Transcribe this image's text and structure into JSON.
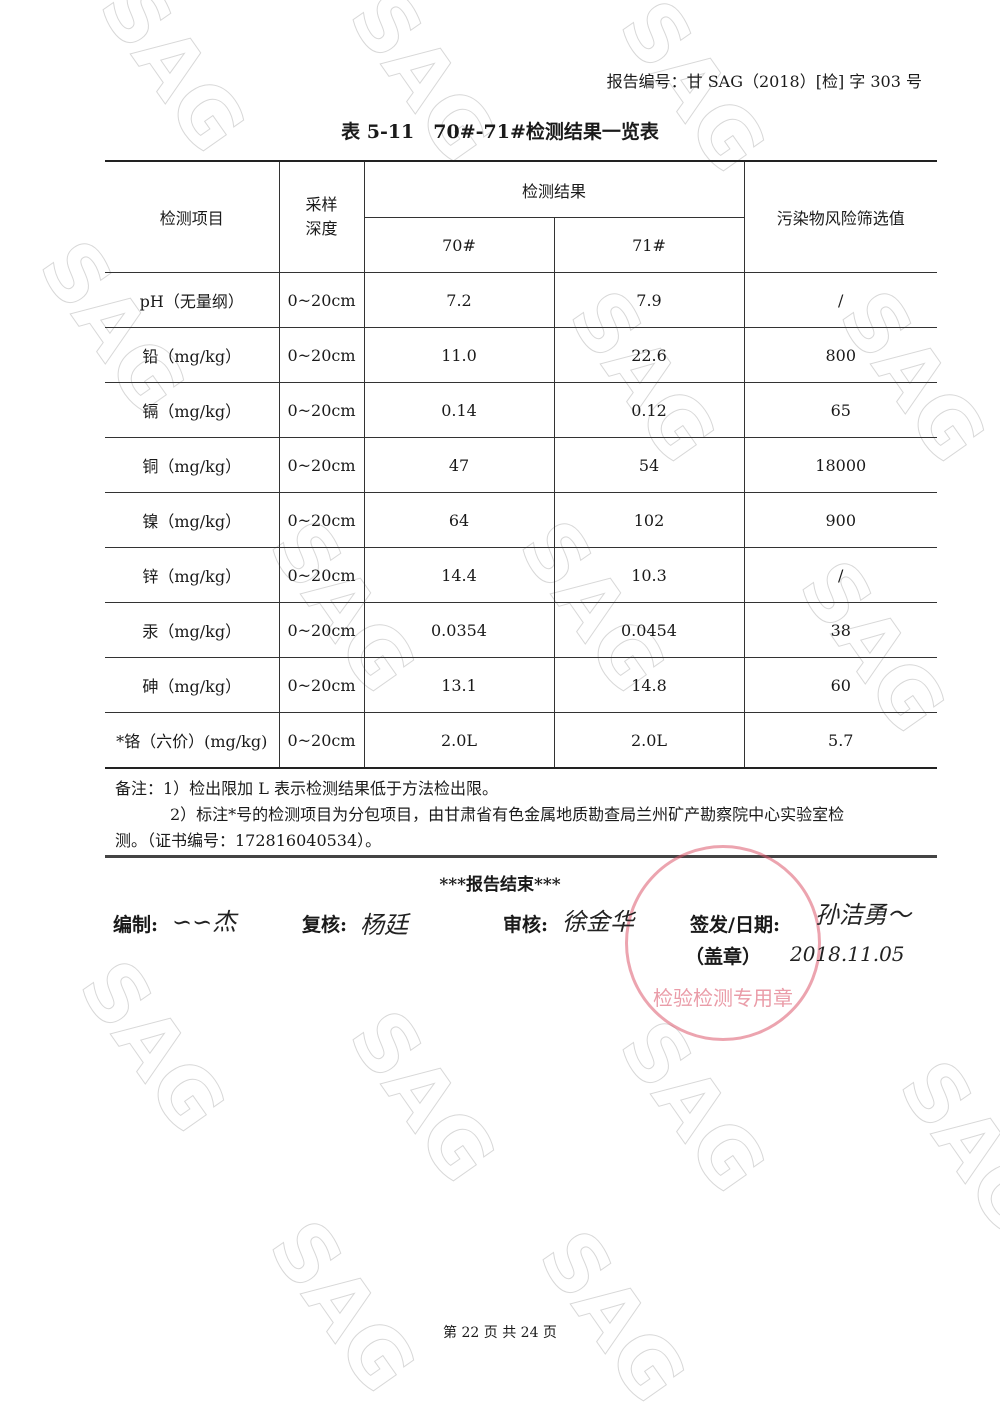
{
  "header": {
    "report_no": "报告编号：甘 SAG（2018）[检] 字 303 号",
    "title": "表 5-11　70#-71#检测结果一览表"
  },
  "table": {
    "headers": {
      "item": "检测项目",
      "depth": "采样深度",
      "results": "检测结果",
      "site1": "70#",
      "site2": "71#",
      "screen": "污染物风险筛选值"
    },
    "rows": [
      {
        "item": "pH（无量纲）",
        "depth": "0~20cm",
        "v70": "7.2",
        "v71": "7.9",
        "screen": "/"
      },
      {
        "item": "铅（mg/kg）",
        "depth": "0~20cm",
        "v70": "11.0",
        "v71": "22.6",
        "screen": "800"
      },
      {
        "item": "镉（mg/kg）",
        "depth": "0~20cm",
        "v70": "0.14",
        "v71": "0.12",
        "screen": "65"
      },
      {
        "item": "铜（mg/kg）",
        "depth": "0~20cm",
        "v70": "47",
        "v71": "54",
        "screen": "18000"
      },
      {
        "item": "镍（mg/kg）",
        "depth": "0~20cm",
        "v70": "64",
        "v71": "102",
        "screen": "900"
      },
      {
        "item": "锌（mg/kg）",
        "depth": "0~20cm",
        "v70": "14.4",
        "v71": "10.3",
        "screen": "/"
      },
      {
        "item": "汞（mg/kg）",
        "depth": "0~20cm",
        "v70": "0.0354",
        "v71": "0.0454",
        "screen": "38"
      },
      {
        "item": "砷（mg/kg）",
        "depth": "0~20cm",
        "v70": "13.1",
        "v71": "14.8",
        "screen": "60"
      },
      {
        "item": "*铬（六价）(mg/kg)",
        "depth": "0~20cm",
        "v70": "2.0L",
        "v71": "2.0L",
        "screen": "5.7"
      }
    ]
  },
  "notes": {
    "line1": "备注：1）检出限加 L 表示检测结果低于方法检出限。",
    "line2": "2）标注*号的检测项目为分包项目，由甘肃省有色金属地质勘查局兰州矿产勘察院中心实验室检",
    "line3": "测。（证书编号：172816040534）。"
  },
  "end": "***报告结束***",
  "signatures": {
    "compile_label": "编制:",
    "review_label": "复核:",
    "audit_label": "审核:",
    "issue_label": "签发/日期:",
    "seal_label": "（盖章）",
    "date": "2018.11.05"
  },
  "stamp": {
    "text": "检验检测专用章",
    "color": "#dc5a6e"
  },
  "watermark": "SAG",
  "footer": "第 22 页 共 24 页"
}
